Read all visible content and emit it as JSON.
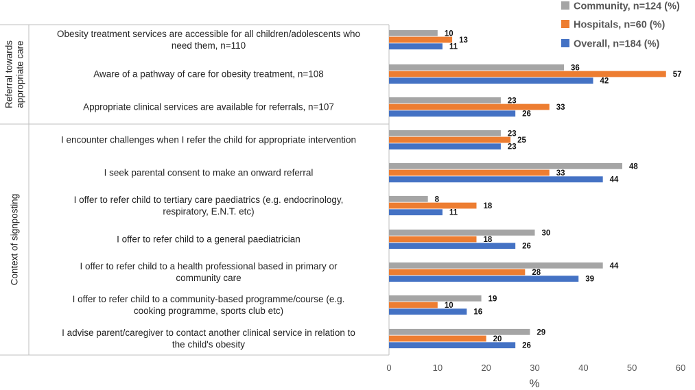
{
  "chart_data": {
    "type": "bar",
    "orientation": "horizontal",
    "title": "",
    "xlabel": "%",
    "ylabel": "",
    "xlim": [
      0,
      60
    ],
    "x_ticks": [
      "0",
      "10",
      "20",
      "30",
      "40",
      "50",
      "60"
    ],
    "grid": false,
    "legend_position": "top-right",
    "groups": [
      {
        "label_lines": [
          "Referral towards",
          "appropriate care"
        ],
        "category_indices": [
          0,
          1,
          2
        ]
      },
      {
        "label_lines": [
          "Context of signposting"
        ],
        "category_indices": [
          3,
          4,
          5,
          6,
          7,
          8,
          9
        ]
      }
    ],
    "categories": [
      [
        "Obesity treatment services are accessible for all children/adolescents who",
        "need them, n=110"
      ],
      [
        "Aware of a pathway of care for obesity treatment, n=108"
      ],
      [
        "Appropriate clinical services are available for referrals, n=107"
      ],
      [
        "I encounter challenges when I refer the child for appropriate intervention"
      ],
      [
        "I seek parental consent to make an onward referral"
      ],
      [
        "I offer to refer child to tertiary care paediatrics (e.g. endocrinology,",
        "respiratory, E.N.T. etc)"
      ],
      [
        "I offer to refer child to a general paediatrician"
      ],
      [
        "I offer to refer child to a health professional based in primary or",
        "community care"
      ],
      [
        "I offer to refer child to a community-based programme/course (e.g.",
        "cooking programme, sports club etc)"
      ],
      [
        "I advise parent/caregiver to contact another clinical service in relation to",
        "the child's obesity"
      ]
    ],
    "series": [
      {
        "name": "Community, n=124 (%)",
        "color": "#a5a5a5",
        "values": [
          10,
          36,
          23,
          23,
          48,
          8,
          30,
          44,
          19,
          29
        ]
      },
      {
        "name": "Hospitals, n=60 (%)",
        "color": "#ed7d31",
        "values": [
          13,
          57,
          33,
          25,
          33,
          18,
          18,
          28,
          10,
          20
        ]
      },
      {
        "name": "Overall, n=184 (%)",
        "color": "#4472c4",
        "values": [
          11,
          42,
          26,
          23,
          44,
          11,
          26,
          39,
          16,
          26
        ]
      }
    ]
  }
}
